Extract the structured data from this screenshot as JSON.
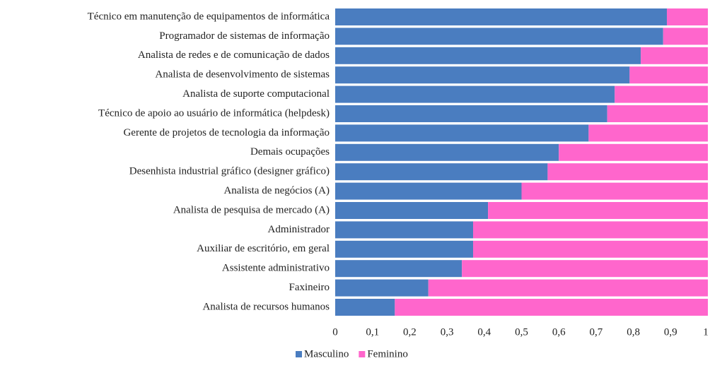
{
  "chart_data": {
    "type": "stacked_barh",
    "categories": [
      "Técnico em manutenção de equipamentos de informática",
      "Programador de sistemas de informação",
      "Analista de redes e de comunicação de dados",
      "Analista de desenvolvimento de sistemas",
      "Analista de suporte computacional",
      "Técnico de apoio ao usuário de informática (helpdesk)",
      "Gerente de projetos de tecnologia da informação",
      "Demais ocupações",
      "Desenhista industrial gráfico (designer gráfico)",
      "Analista de negócios (A)",
      "Analista de pesquisa de mercado (A)",
      "Administrador",
      "Auxiliar de escritório, em geral",
      "Assistente administrativo",
      "Faxineiro",
      "Analista de recursos humanos"
    ],
    "series": [
      {
        "name": "Masculino",
        "color": "#4a7dc0",
        "values": [
          0.89,
          0.88,
          0.82,
          0.79,
          0.75,
          0.73,
          0.68,
          0.6,
          0.57,
          0.5,
          0.41,
          0.37,
          0.37,
          0.34,
          0.25,
          0.16
        ]
      },
      {
        "name": "Feminino",
        "color": "#ff66cc",
        "values": [
          0.11,
          0.12,
          0.18,
          0.21,
          0.25,
          0.27,
          0.32,
          0.4,
          0.43,
          0.5,
          0.59,
          0.63,
          0.63,
          0.66,
          0.75,
          0.84
        ]
      }
    ],
    "xlim": [
      0,
      1
    ],
    "xticks": [
      0,
      {
        "value": 0.1,
        "label": "0,1"
      },
      {
        "value": 0.2,
        "label": "0,2"
      },
      {
        "value": 0.3,
        "label": "0,3"
      },
      {
        "value": 0.4,
        "label": "0,4"
      },
      {
        "value": 0.5,
        "label": "0,5"
      },
      {
        "value": 0.6,
        "label": "0,6"
      },
      {
        "value": 0.7,
        "label": "0,7"
      },
      {
        "value": 0.8,
        "label": "0,8"
      },
      {
        "value": 0.9,
        "label": "0,9"
      },
      1
    ],
    "legend": "bottom"
  }
}
